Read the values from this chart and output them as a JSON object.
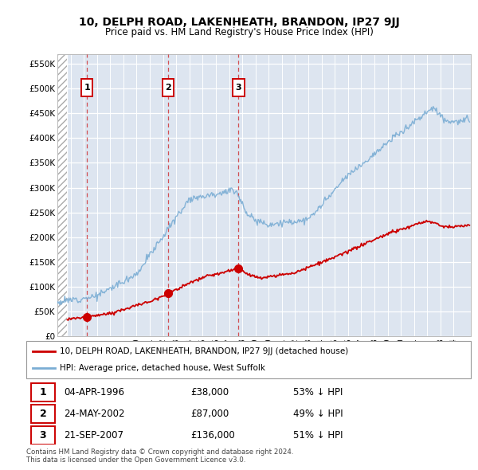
{
  "title": "10, DELPH ROAD, LAKENHEATH, BRANDON, IP27 9JJ",
  "subtitle": "Price paid vs. HM Land Registry's House Price Index (HPI)",
  "legend_line1": "10, DELPH ROAD, LAKENHEATH, BRANDON, IP27 9JJ (detached house)",
  "legend_line2": "HPI: Average price, detached house, West Suffolk",
  "footer1": "Contains HM Land Registry data © Crown copyright and database right 2024.",
  "footer2": "This data is licensed under the Open Government Licence v3.0.",
  "sales": [
    {
      "num": 1,
      "date": "04-APR-1996",
      "price": 38000,
      "pct": "53%",
      "year": 1996.25
    },
    {
      "num": 2,
      "date": "24-MAY-2002",
      "price": 87000,
      "pct": "49%",
      "year": 2002.38
    },
    {
      "num": 3,
      "date": "21-SEP-2007",
      "price": 136000,
      "pct": "51%",
      "year": 2007.72
    }
  ],
  "ylim": [
    0,
    570000
  ],
  "xlim_start": 1994.0,
  "xlim_end": 2025.3,
  "hatch_end": 1994.75,
  "plot_bg": "#dde5f0",
  "red_color": "#cc0000",
  "blue_color": "#7aadd4",
  "hatch_color": "#bbbbbb"
}
